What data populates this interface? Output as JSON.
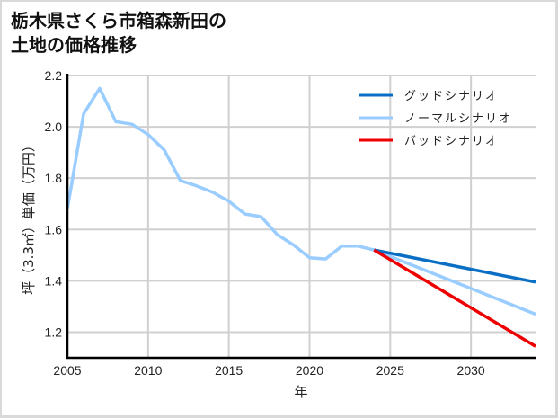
{
  "title_line1": "栃木県さくら市箱森新田の",
  "title_line2": "土地の価格推移",
  "chart_data": {
    "type": "line",
    "title": "栃木県さくら市箱森新田の土地の価格推移",
    "xlabel": "年",
    "ylabel": "坪（3.3㎡）単価（万円）",
    "xlim": [
      2005,
      2034
    ],
    "ylim": [
      1.1,
      2.2
    ],
    "grid": true,
    "legend_position": "upper right",
    "x_ticks": [
      2005,
      2010,
      2015,
      2020,
      2025,
      2030
    ],
    "y_ticks": [
      1.2,
      1.4,
      1.6,
      1.8,
      2.0,
      2.2
    ],
    "series": [
      {
        "name": "グッドシナリオ",
        "color": "#0a6fc4",
        "x": [
          2024,
          2034
        ],
        "values": [
          1.52,
          1.395
        ]
      },
      {
        "name": "ノーマルシナリオ",
        "color": "#99ccff",
        "x": [
          2005,
          2006,
          2007,
          2008,
          2009,
          2010,
          2011,
          2012,
          2013,
          2014,
          2015,
          2016,
          2017,
          2018,
          2019,
          2020,
          2021,
          2022,
          2023,
          2024,
          2034
        ],
        "values": [
          1.68,
          2.05,
          2.15,
          2.02,
          2.01,
          1.97,
          1.91,
          1.79,
          1.77,
          1.745,
          1.71,
          1.66,
          1.65,
          1.58,
          1.54,
          1.49,
          1.485,
          1.535,
          1.535,
          1.52,
          1.27
        ]
      },
      {
        "name": "バッドシナリオ",
        "color": "#ee0000",
        "x": [
          2024,
          2034
        ],
        "values": [
          1.52,
          1.145
        ]
      }
    ]
  }
}
